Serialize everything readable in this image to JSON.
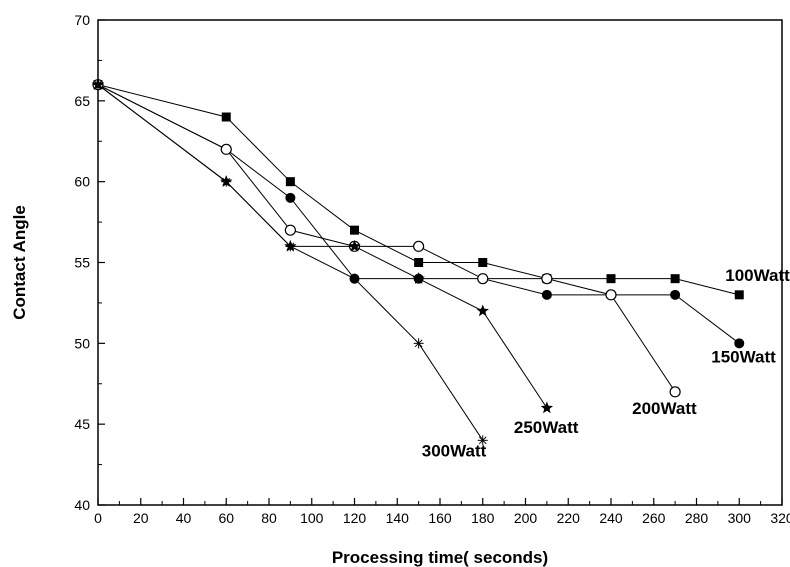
{
  "chart_data": {
    "type": "line",
    "title": "",
    "xlabel": "Processing time( seconds)",
    "ylabel": "Contact Angle",
    "xlim": [
      0,
      320
    ],
    "ylim": [
      40,
      70
    ],
    "xticks": [
      0,
      20,
      40,
      60,
      80,
      100,
      120,
      140,
      160,
      180,
      200,
      220,
      240,
      260,
      280,
      300,
      320
    ],
    "yticks": [
      40,
      45,
      50,
      55,
      60,
      65,
      70
    ],
    "grid": false,
    "legend": "inline series labels near line ends",
    "series": [
      {
        "name": "100Watt",
        "marker": "filled-square",
        "x": [
          0,
          60,
          90,
          120,
          150,
          180,
          210,
          240,
          270,
          300
        ],
        "y": [
          66,
          64,
          60,
          57,
          55,
          55,
          54,
          54,
          54,
          53
        ]
      },
      {
        "name": "150Watt",
        "marker": "filled-circle",
        "x": [
          0,
          60,
          90,
          120,
          150,
          180,
          210,
          240,
          270,
          300
        ],
        "y": [
          66,
          62,
          59,
          54,
          54,
          54,
          53,
          53,
          53,
          50
        ]
      },
      {
        "name": "200Watt",
        "marker": "open-circle",
        "x": [
          0,
          60,
          90,
          120,
          150,
          180,
          210,
          240,
          270
        ],
        "y": [
          66,
          62,
          57,
          56,
          56,
          54,
          54,
          53,
          47
        ]
      },
      {
        "name": "250Watt",
        "marker": "filled-star",
        "x": [
          0,
          60,
          90,
          120,
          150,
          180,
          210
        ],
        "y": [
          66,
          60,
          56,
          56,
          54,
          52,
          46
        ]
      },
      {
        "name": "300Watt",
        "marker": "asterisk",
        "x": [
          0,
          60,
          90,
          120,
          150,
          180
        ],
        "y": [
          66,
          60,
          56,
          54,
          50,
          44
        ]
      }
    ]
  }
}
